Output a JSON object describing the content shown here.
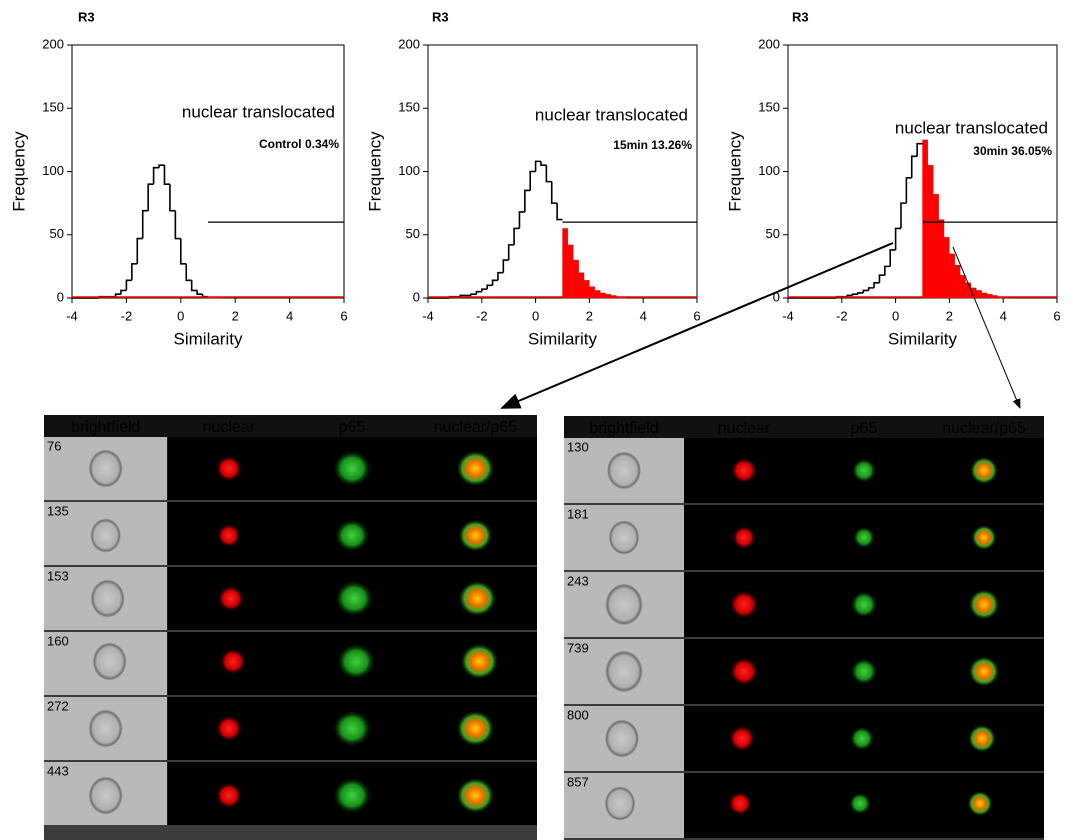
{
  "chart_data": [
    {
      "type": "histogram",
      "title": "R3",
      "annotation": "nuclear translocated",
      "label": "Control 0.34%",
      "xlabel": "Similarity",
      "ylabel": "Frequency",
      "bins": [
        -4,
        -3.8,
        -3.6,
        -3.4,
        -3.2,
        -3,
        -2.8,
        -2.6,
        -2.4,
        -2.2,
        -2,
        -1.8,
        -1.6,
        -1.4,
        -1.2,
        -1,
        -0.8,
        -0.6,
        -0.4,
        -0.2,
        0,
        0.2,
        0.4,
        0.6,
        0.8,
        1,
        1.2,
        1.4,
        1.6,
        1.8,
        2,
        2.2,
        2.4,
        2.6,
        2.8,
        3,
        3.2,
        3.4,
        3.6,
        3.8,
        4,
        4.2,
        4.4,
        4.6,
        4.8,
        5,
        5.2,
        5.4,
        5.6,
        5.8,
        6
      ],
      "values": [
        0,
        0,
        0,
        0,
        0,
        1,
        1,
        1,
        3,
        6,
        14,
        27,
        47,
        69,
        90,
        103,
        105,
        90,
        69,
        47,
        27,
        14,
        6,
        3,
        1,
        1,
        1,
        0,
        0,
        0,
        0,
        0,
        0,
        0,
        0,
        0,
        0,
        0,
        0,
        0,
        0,
        0,
        0,
        0,
        0,
        0,
        0,
        0,
        0,
        0
      ],
      "color": "#000000",
      "gate": {
        "x": [
          1,
          6
        ],
        "y": 60,
        "color": "#ff0000"
      },
      "xlim": [
        -4,
        6
      ],
      "xticks": [
        -4,
        -2,
        0,
        2,
        4,
        6
      ],
      "ylim": [
        0,
        200
      ],
      "yticks": [
        0,
        50,
        100,
        150,
        200
      ]
    },
    {
      "type": "histogram",
      "title": "R3",
      "annotation": "nuclear translocated",
      "label": "15min 13.26%",
      "xlabel": "Similarity",
      "ylabel": "Frequency",
      "bins": [
        -4,
        -3.8,
        -3.6,
        -3.4,
        -3.2,
        -3,
        -2.8,
        -2.6,
        -2.4,
        -2.2,
        -2,
        -1.8,
        -1.6,
        -1.4,
        -1.2,
        -1,
        -0.8,
        -0.6,
        -0.4,
        -0.2,
        0,
        0.2,
        0.4,
        0.6,
        0.8,
        1,
        1.2,
        1.4,
        1.6,
        1.8,
        2,
        2.2,
        2.4,
        2.6,
        2.8,
        3,
        3.2,
        3.4,
        3.6,
        3.8,
        4,
        4.2,
        4.4,
        4.6,
        4.8,
        5,
        5.2,
        5.4,
        5.6,
        5.8,
        6
      ],
      "values": [
        0,
        0,
        0,
        0,
        1,
        1,
        2,
        2,
        3,
        5,
        7,
        10,
        14,
        20,
        30,
        42,
        55,
        68,
        85,
        100,
        108,
        105,
        92,
        75,
        62,
        55,
        42,
        30,
        20,
        14,
        9,
        6,
        4,
        3,
        2,
        1,
        1,
        0,
        0,
        0,
        0,
        0,
        0,
        0,
        0,
        0,
        0,
        0,
        0,
        0
      ],
      "color": "#000000",
      "gate": {
        "x": [
          1,
          6
        ],
        "y": 60,
        "color": "#ff0000"
      },
      "xlim": [
        -4,
        6
      ],
      "xticks": [
        -4,
        -2,
        0,
        2,
        4,
        6
      ],
      "ylim": [
        0,
        200
      ],
      "yticks": [
        0,
        50,
        100,
        150,
        200
      ]
    },
    {
      "type": "histogram",
      "title": "R3",
      "annotation": "nuclear translocated",
      "label": "30min 36.05%",
      "xlabel": "Similarity",
      "ylabel": "Frequency",
      "bins": [
        -4,
        -3.8,
        -3.6,
        -3.4,
        -3.2,
        -3,
        -2.8,
        -2.6,
        -2.4,
        -2.2,
        -2,
        -1.8,
        -1.6,
        -1.4,
        -1.2,
        -1,
        -0.8,
        -0.6,
        -0.4,
        -0.2,
        0,
        0.2,
        0.4,
        0.6,
        0.8,
        1,
        1.2,
        1.4,
        1.6,
        1.8,
        2,
        2.2,
        2.4,
        2.6,
        2.8,
        3,
        3.2,
        3.4,
        3.6,
        3.8,
        4,
        4.2,
        4.4,
        4.6,
        4.8,
        5,
        5.2,
        5.4,
        5.6,
        5.8,
        6
      ],
      "values": [
        0,
        0,
        0,
        0,
        0,
        0,
        0,
        0,
        0,
        1,
        1,
        2,
        3,
        4,
        6,
        8,
        12,
        18,
        25,
        38,
        55,
        75,
        95,
        112,
        122,
        125,
        105,
        82,
        62,
        48,
        35,
        26,
        18,
        12,
        8,
        6,
        4,
        3,
        2,
        1,
        1,
        0,
        0,
        0,
        0,
        0,
        0,
        0,
        0,
        0
      ],
      "color": "#000000",
      "gate": {
        "x": [
          1,
          6
        ],
        "y": 60,
        "color": "#ff0000"
      },
      "xlim": [
        -4,
        6
      ],
      "xticks": [
        -4,
        -2,
        0,
        2,
        4,
        6
      ],
      "ylim": [
        0,
        200
      ],
      "yticks": [
        0,
        50,
        100,
        150,
        200
      ]
    }
  ],
  "galleries": [
    {
      "columns": [
        "brightfield",
        "nuclear",
        "p65",
        "nuclear/p65"
      ],
      "rows": [
        "76",
        "135",
        "153",
        "160",
        "272",
        "443"
      ]
    },
    {
      "columns": [
        "brightfield",
        "nuclear",
        "p65",
        "nuclear/p65"
      ],
      "rows": [
        "130",
        "181",
        "243",
        "739",
        "800",
        "857"
      ]
    }
  ]
}
